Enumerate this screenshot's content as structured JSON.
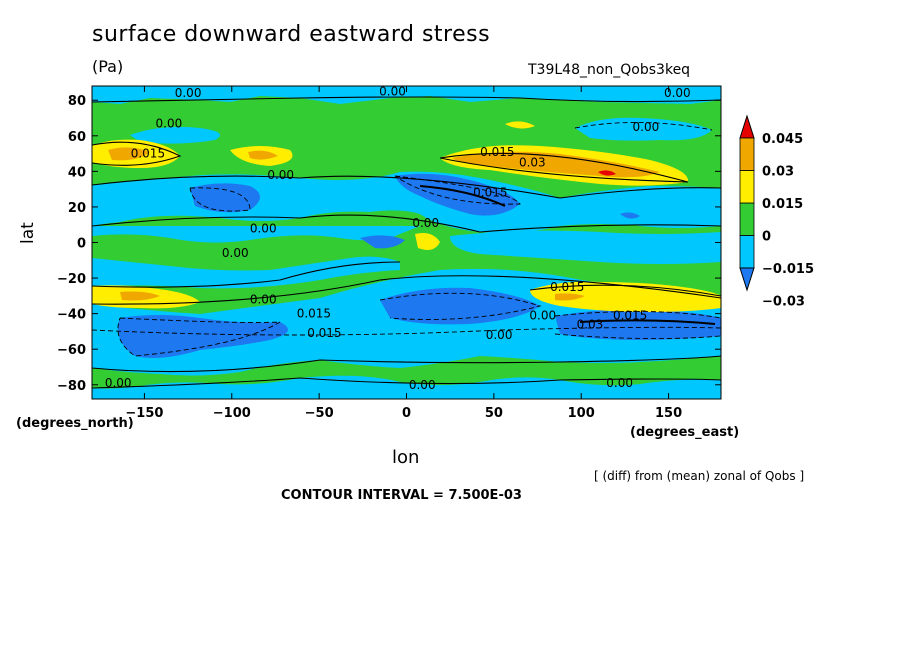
{
  "chart_data": {
    "type": "heatmap",
    "title": "surface downward eastward stress",
    "units": "(Pa)",
    "subtitle": "T39L48_non_Qobs3keq",
    "xlabel": "lon",
    "ylabel": "lat",
    "x_units": "(degrees_east)",
    "y_units": "(degrees_north)",
    "xlim": [
      -180,
      180
    ],
    "ylim": [
      -88,
      88
    ],
    "x_ticks": [
      -150,
      -100,
      -50,
      0,
      50,
      100,
      150
    ],
    "y_ticks": [
      -80,
      -60,
      -40,
      -20,
      0,
      20,
      40,
      60,
      80
    ],
    "x_tick_labels": [
      "-150",
      "-100",
      "-50",
      "0",
      "50",
      "100",
      "150"
    ],
    "y_tick_labels": [
      "-80",
      "-60",
      "-40",
      "-20",
      "0",
      "20",
      "40",
      "60",
      "80"
    ],
    "legend_position": "right",
    "colorbar": {
      "labels": [
        "0.045",
        "0.03",
        "0.015",
        "0",
        "-0.015",
        "-0.03"
      ],
      "bin_colors": [
        "#1e78f0",
        "#00c8ff",
        "#33cc33",
        "#ffee00",
        "#f0a800",
        "#e60000"
      ]
    },
    "contour_interval": "7.500E-03",
    "note": "[ (diff) from (mean) zonal of Qobs ]",
    "contour_labels": [
      {
        "text": "0.00",
        "x": -125,
        "y": 84
      },
      {
        "text": "0.00",
        "x": -8,
        "y": 85
      },
      {
        "text": "0.00",
        "x": 155,
        "y": 84
      },
      {
        "text": "0.00",
        "x": -136,
        "y": 67
      },
      {
        "text": "0.00",
        "x": 137,
        "y": 65
      },
      {
        "text": "0.015",
        "x": -148,
        "y": 50
      },
      {
        "text": "0.015",
        "x": 52,
        "y": 51
      },
      {
        "text": "0.03",
        "x": 72,
        "y": 45
      },
      {
        "text": "0.00",
        "x": -72,
        "y": 38
      },
      {
        "text": "0.015",
        "x": 48,
        "y": 28
      },
      {
        "text": "0.00",
        "x": 11,
        "y": 11
      },
      {
        "text": "0.00",
        "x": -82,
        "y": 8
      },
      {
        "text": "0.00",
        "x": -98,
        "y": -6
      },
      {
        "text": "0.015",
        "x": 92,
        "y": -25
      },
      {
        "text": "0.00",
        "x": -82,
        "y": -32
      },
      {
        "text": "0.015",
        "x": -53,
        "y": -40
      },
      {
        "text": "0.015",
        "x": -47,
        "y": -51
      },
      {
        "text": "0.00",
        "x": 78,
        "y": -41
      },
      {
        "text": "0.03",
        "x": 105,
        "y": -46
      },
      {
        "text": "0.015",
        "x": 128,
        "y": -41
      },
      {
        "text": "0.00",
        "x": 53,
        "y": -52
      },
      {
        "text": "0.00",
        "x": -165,
        "y": -79
      },
      {
        "text": "0.00",
        "x": 9,
        "y": -80
      },
      {
        "text": "0.00",
        "x": 122,
        "y": -79
      }
    ],
    "regions": [
      {
        "level": "positive_0_0.015",
        "desc": "background band"
      },
      {
        "level": "negative_-0.015_0",
        "y_range": [
          20,
          38
        ]
      },
      {
        "level": "negative_-0.015_0",
        "y_range": [
          -72,
          -18
        ]
      },
      {
        "level": "negative_-0.03_-0.015",
        "y_range": [
          -62,
          -30
        ]
      },
      {
        "level": "positive_0.015_0.03",
        "y_range": [
          -40,
          -25
        ]
      },
      {
        "level": "positive_0.015_0.045",
        "y_range": [
          32,
          52
        ]
      }
    ]
  }
}
